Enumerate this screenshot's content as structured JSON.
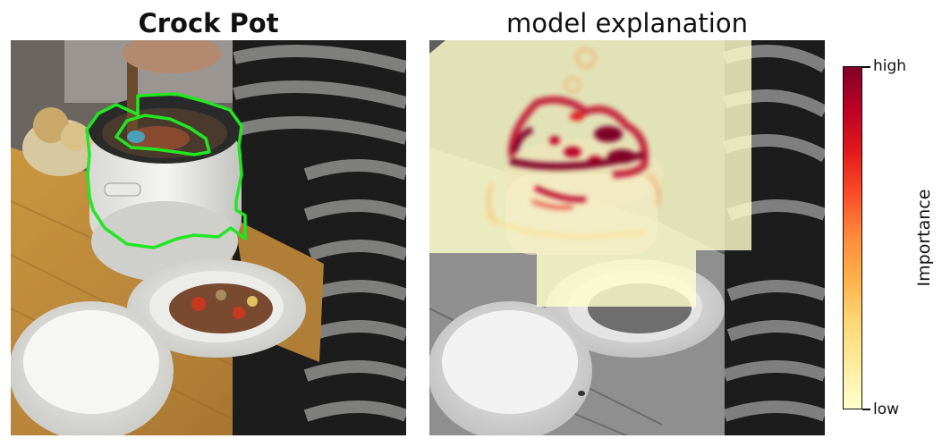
{
  "panels": {
    "left_title": "Crock Pot",
    "right_title": "model explanation"
  },
  "colorbar": {
    "label": "Importance",
    "high": "high",
    "low": "low",
    "colors": [
      "#800026",
      "#bd0026",
      "#e31a1c",
      "#fc4e2a",
      "#fd8d3c",
      "#feb24c",
      "#fed976",
      "#ffeda0",
      "#ffffcc"
    ]
  },
  "colors": {
    "outline": "#22e622",
    "overlay": "#ffffcc"
  }
}
